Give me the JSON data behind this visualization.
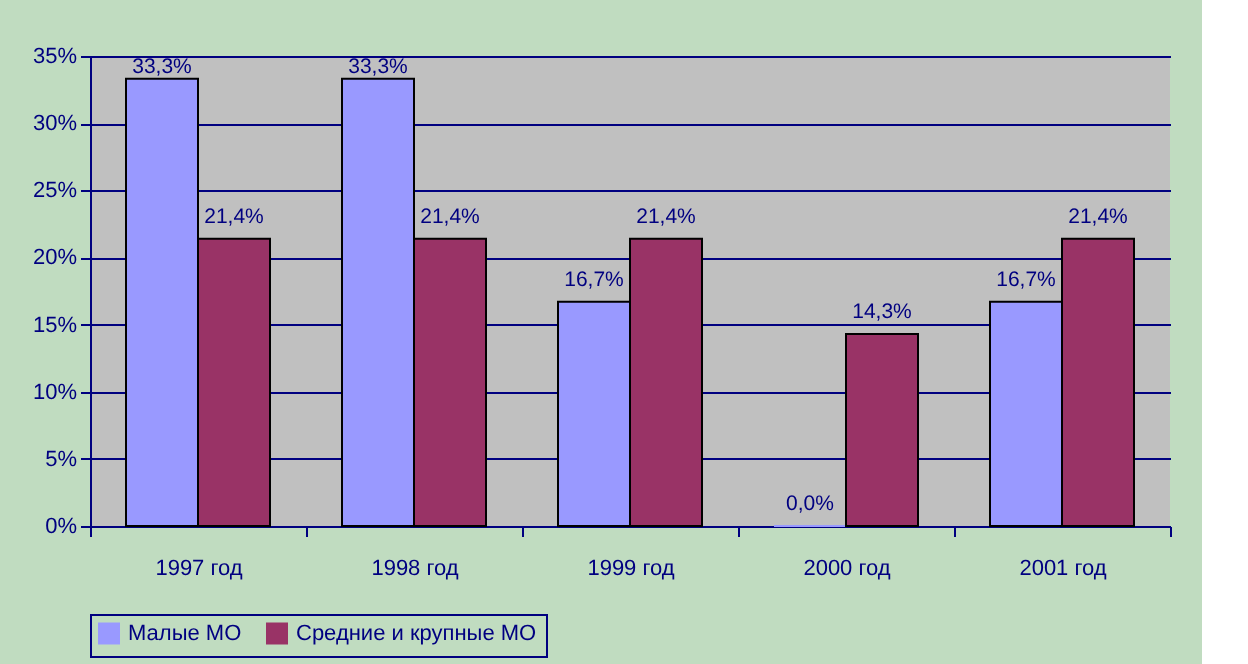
{
  "chart_data": {
    "type": "bar",
    "categories": [
      "1997 год",
      "1998 год",
      "1999 год",
      "2000 год",
      "2001 год"
    ],
    "series": [
      {
        "name": "Малые МО",
        "color": "#9999ff",
        "values": [
          33.3,
          33.3,
          16.7,
          0.0,
          16.7
        ],
        "value_labels": [
          "33,3%",
          "33,3%",
          "16,7%",
          "0,0%",
          "16,7%"
        ]
      },
      {
        "name": "Средние и крупные МО",
        "color": "#993366",
        "values": [
          21.4,
          21.4,
          21.4,
          14.3,
          21.4
        ],
        "value_labels": [
          "21,4%",
          "21,4%",
          "21,4%",
          "14,3%",
          "21,4%"
        ]
      }
    ],
    "ylim": [
      0,
      35
    ],
    "yticks": [
      {
        "value": 0,
        "label": "0%"
      },
      {
        "value": 5,
        "label": "5%"
      },
      {
        "value": 10,
        "label": "10%"
      },
      {
        "value": 15,
        "label": "15%"
      },
      {
        "value": 20,
        "label": "20%"
      },
      {
        "value": 25,
        "label": "25%"
      },
      {
        "value": 30,
        "label": "30%"
      },
      {
        "value": 35,
        "label": "35%"
      }
    ],
    "grid": "y",
    "legend": "bottom"
  }
}
